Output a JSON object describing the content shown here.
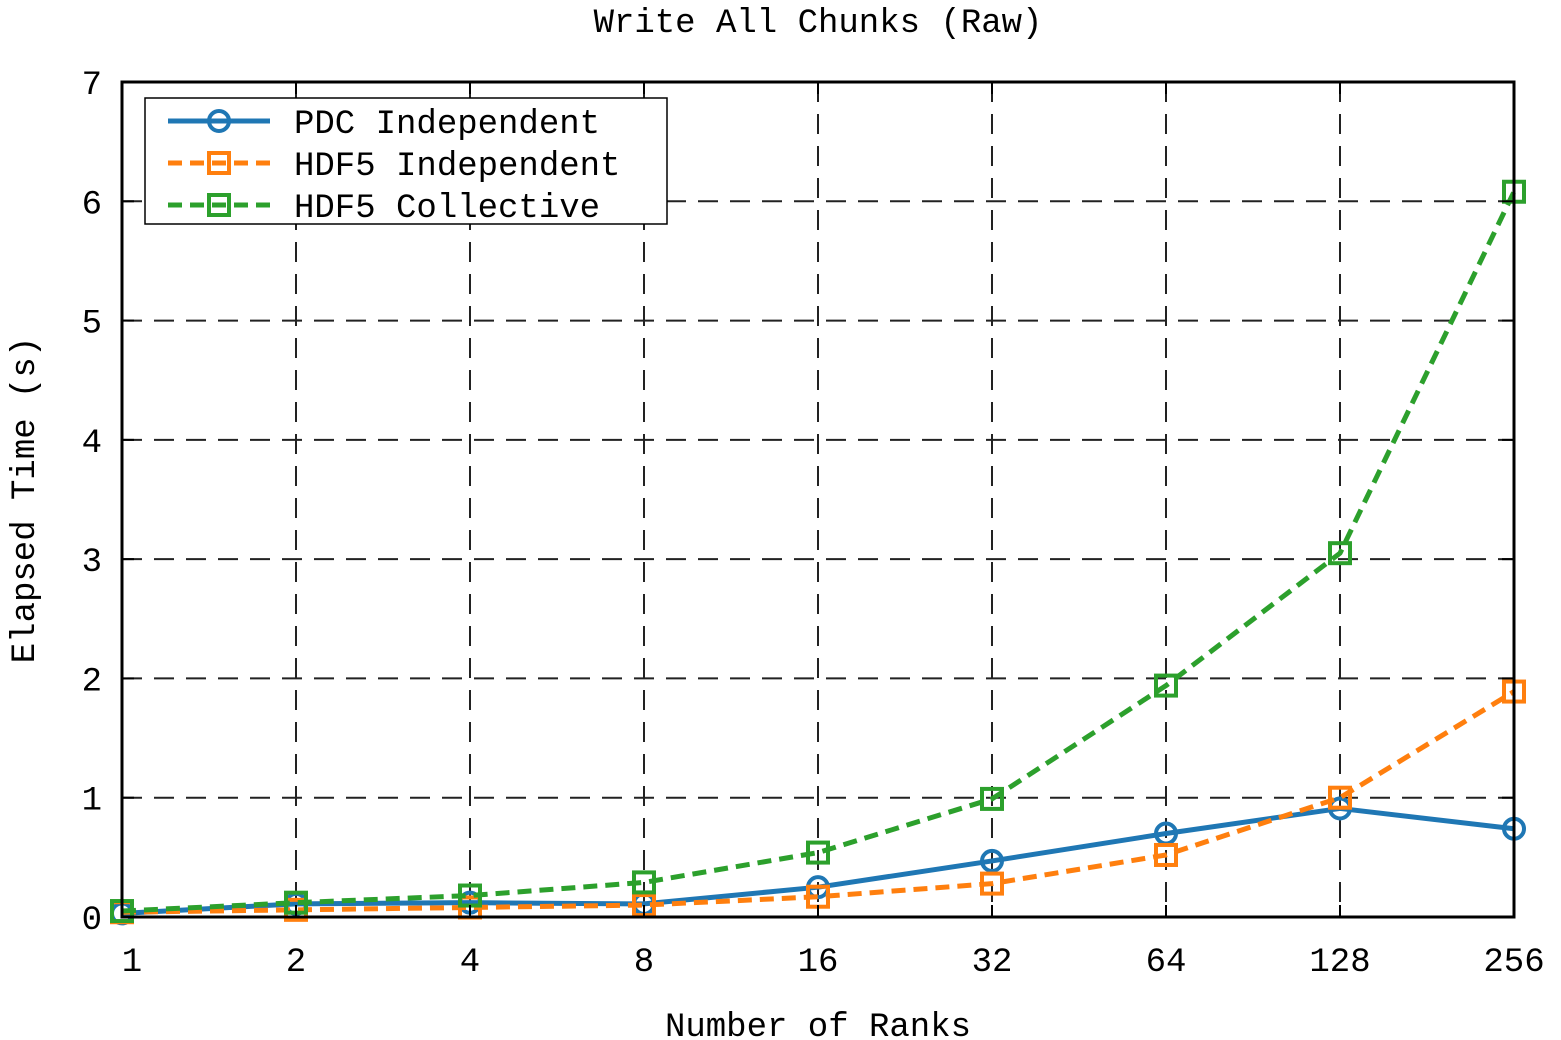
{
  "chart_data": {
    "type": "line",
    "title": "Write All Chunks (Raw)",
    "xlabel": "Number of Ranks",
    "ylabel": "Elapsed Time (s)",
    "categories": [
      "1",
      "2",
      "4",
      "8",
      "16",
      "32",
      "64",
      "128",
      "256"
    ],
    "ylim": [
      0,
      7
    ],
    "yticks": [
      "0",
      "1",
      "2",
      "3",
      "4",
      "5",
      "6",
      "7"
    ],
    "grid": true,
    "legend_position": "top-left",
    "series": [
      {
        "name": "PDC Independent",
        "color": "#1f77b4",
        "marker": "circle",
        "line": "solid",
        "values": [
          0.03,
          0.11,
          0.12,
          0.11,
          0.25,
          0.47,
          0.7,
          0.91,
          0.74
        ]
      },
      {
        "name": "HDF5 Independent",
        "color": "#ff7f0e",
        "marker": "square",
        "line": "dashed",
        "values": [
          0.04,
          0.06,
          0.08,
          0.1,
          0.17,
          0.28,
          0.52,
          1.0,
          1.89
        ]
      },
      {
        "name": "HDF5 Collective",
        "color": "#2ca02c",
        "marker": "square",
        "line": "dashed",
        "values": [
          0.05,
          0.12,
          0.18,
          0.29,
          0.54,
          0.99,
          1.94,
          3.05,
          6.08
        ]
      }
    ]
  }
}
